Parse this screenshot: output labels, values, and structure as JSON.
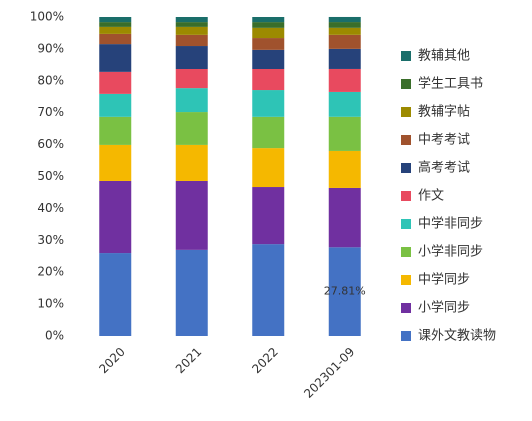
{
  "chart_data": {
    "type": "stacked_bar",
    "categories": [
      "2020",
      "2021",
      "2022",
      "202301-09"
    ],
    "series": [
      {
        "name": "课外文教读物",
        "color": "#4472c4",
        "values": [
          26.0,
          27.0,
          28.8,
          27.81
        ],
        "value_labels": [
          null,
          null,
          null,
          "27.81%"
        ]
      },
      {
        "name": "小学同步",
        "color": "#7030a0",
        "values": [
          22.6,
          21.6,
          17.9,
          18.6
        ]
      },
      {
        "name": "中学同步",
        "color": "#f5b800",
        "values": [
          11.3,
          11.3,
          12.2,
          11.6
        ]
      },
      {
        "name": "小学非同步",
        "color": "#7ac143",
        "values": [
          8.8,
          10.3,
          9.8,
          10.7
        ]
      },
      {
        "name": "中学非同步",
        "color": "#2ec4b6",
        "values": [
          7.2,
          7.5,
          8.4,
          7.8
        ]
      },
      {
        "name": "作文",
        "color": "#e84a5f",
        "values": [
          6.9,
          6.0,
          6.6,
          7.2
        ]
      },
      {
        "name": "高考考试",
        "color": "#26427a",
        "values": [
          8.7,
          7.2,
          6.0,
          6.3
        ]
      },
      {
        "name": "中考考试",
        "color": "#a0522d",
        "values": [
          3.2,
          3.5,
          3.7,
          4.4
        ]
      },
      {
        "name": "教辅字帖",
        "color": "#9c8a00",
        "values": [
          2.2,
          2.5,
          3.2,
          2.2
        ]
      },
      {
        "name": "学生工具书",
        "color": "#3a6e2a",
        "values": [
          1.5,
          1.5,
          1.8,
          1.8
        ]
      },
      {
        "name": "教辅其他",
        "color": "#1a6e6a",
        "values": [
          1.6,
          1.6,
          1.6,
          1.6
        ]
      }
    ],
    "ylim": [
      0,
      100
    ],
    "yticks": [
      {
        "value": 0,
        "label": "0%"
      },
      {
        "value": 10,
        "label": "10%"
      },
      {
        "value": 20,
        "label": "20%"
      },
      {
        "value": 30,
        "label": "30%"
      },
      {
        "value": 40,
        "label": "40%"
      },
      {
        "value": 50,
        "label": "50%"
      },
      {
        "value": 60,
        "label": "60%"
      },
      {
        "value": 70,
        "label": "70%"
      },
      {
        "value": 80,
        "label": "80%"
      },
      {
        "value": 90,
        "label": "90%"
      },
      {
        "value": 100,
        "label": "100%"
      }
    ],
    "legend": "right"
  }
}
